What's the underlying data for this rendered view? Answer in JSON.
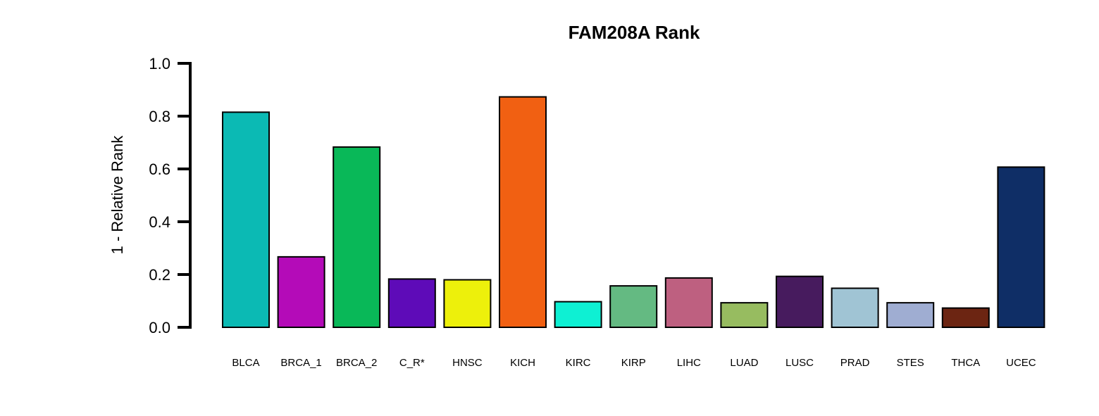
{
  "chart_data": {
    "type": "bar",
    "title": "FAM208A Rank",
    "xlabel": "",
    "ylabel": "1 - Relative Rank",
    "ylim": [
      0,
      1
    ],
    "yticks": [
      "0.0",
      "0.2",
      "0.4",
      "0.6",
      "0.8",
      "1.0"
    ],
    "ytick_values": [
      0,
      0.2,
      0.4,
      0.6,
      0.8,
      1.0
    ],
    "categories": [
      "BLCA",
      "BRCA_1",
      "BRCA_2",
      "C_R*",
      "HNSC",
      "KICH",
      "KIRC",
      "KIRP",
      "LIHC",
      "LUAD",
      "LUSC",
      "PRAD",
      "STES",
      "THCA",
      "UCEC"
    ],
    "values": [
      0.815,
      0.267,
      0.683,
      0.183,
      0.18,
      0.873,
      0.097,
      0.157,
      0.187,
      0.093,
      0.193,
      0.148,
      0.093,
      0.073,
      0.607
    ],
    "colors": [
      "#0bbab4",
      "#b40bb8",
      "#09b858",
      "#5e0bb8",
      "#edf00b",
      "#f16012",
      "#0ef0d3",
      "#64ba82",
      "#be6080",
      "#97bc60",
      "#471b5e",
      "#a0c4d4",
      "#9fadd2",
      "#6c2512",
      "#0f2e66"
    ],
    "grid": false,
    "legend": "none"
  }
}
